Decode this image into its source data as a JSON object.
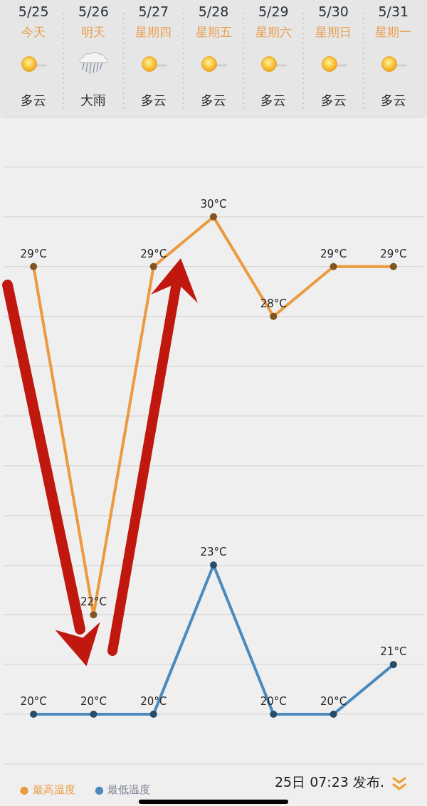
{
  "chart_data": {
    "type": "line",
    "categories": [
      "5/25",
      "5/26",
      "5/27",
      "5/28",
      "5/29",
      "5/30",
      "5/31"
    ],
    "series": [
      {
        "name": "最高温度",
        "color": "#eb9a3e",
        "values": [
          29,
          22,
          29,
          30,
          28,
          29,
          29
        ],
        "value_labels": [
          "29°C",
          "22°C",
          "29°C",
          "30°C",
          "28°C",
          "29°C",
          "29°C"
        ]
      },
      {
        "name": "最低温度",
        "color": "#4b8abc",
        "values": [
          20,
          20,
          20,
          23,
          20,
          20,
          21
        ],
        "value_labels": [
          "20°C",
          "20°C",
          "20°C",
          "23°C",
          "20°C",
          "20°C",
          "21°C"
        ]
      }
    ],
    "ylim": [
      19,
      32
    ],
    "yticks": [
      {
        "value": 19,
        "label": null
      },
      {
        "value": 20,
        "label": null
      },
      {
        "value": 21,
        "label": null
      },
      {
        "value": 22,
        "label": null
      },
      {
        "value": 23,
        "label": null
      },
      {
        "value": 24,
        "label": null
      },
      {
        "value": 25,
        "label": null
      },
      {
        "value": 26,
        "label": null
      },
      {
        "value": 27,
        "label": null
      },
      {
        "value": 28,
        "label": null
      },
      {
        "value": 29,
        "label": null
      },
      {
        "value": 30,
        "label": null
      },
      {
        "value": 31,
        "label": null
      },
      {
        "value": 32,
        "label": null
      }
    ],
    "grid": "y",
    "tick_labels": "x",
    "legend": "bottom left",
    "marker": "circle",
    "line_style": "solid",
    "annotations": [
      "今天",
      "明天",
      "星期四",
      "星期五",
      "星期六",
      "星期日",
      "星期一",
      "多云",
      "大雨",
      "多云",
      "多云",
      "多云",
      "多云",
      "多云",
      "25日 07:23 发布."
    ]
  }
}
